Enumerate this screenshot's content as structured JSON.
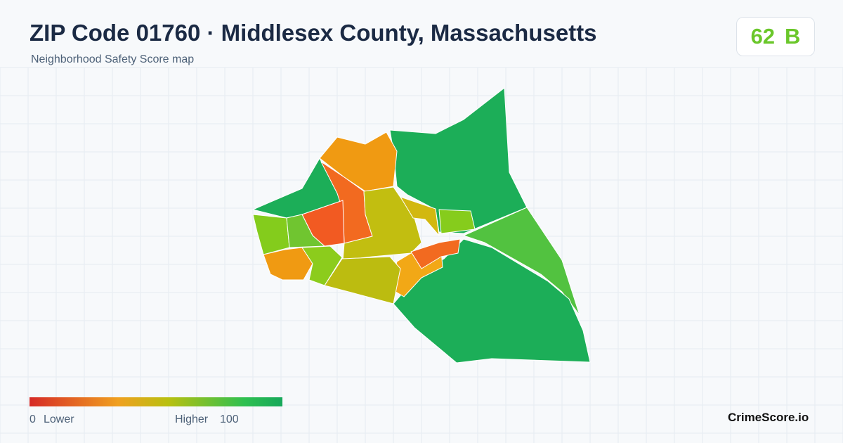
{
  "header": {
    "title": "ZIP Code 01760 · Middlesex County, Massachusetts",
    "subtitle": "Neighborhood Safety Score map"
  },
  "score": {
    "value": "62",
    "grade": "B"
  },
  "legend": {
    "min": "0",
    "low_label": "Lower",
    "high_label": "Higher",
    "max": "100"
  },
  "brand": "CrimeScore.io"
}
